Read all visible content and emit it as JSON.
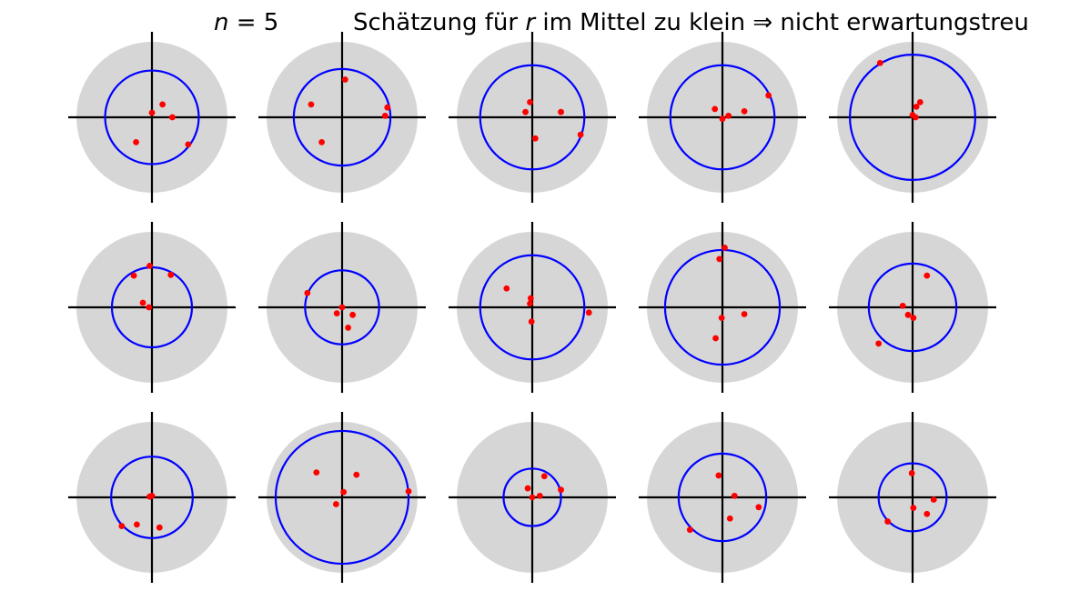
{
  "header": {
    "n_var": "n",
    "n_eq": " = 5",
    "caption_pre": "Schätzung für ",
    "caption_var": "r",
    "caption_post": " im Mittel zu klein ⇒ nicht erwartungstreu"
  },
  "colors": {
    "disk": "#d6d6d6",
    "estimate_circle": "#0000ff",
    "point": "#ff0000",
    "axis": "#000000"
  },
  "panels": [
    {
      "r": 0.62,
      "pts": [
        [
          0.0,
          0.06
        ],
        [
          0.14,
          0.17
        ],
        [
          0.27,
          0.0
        ],
        [
          -0.21,
          -0.33
        ],
        [
          0.48,
          -0.36
        ]
      ]
    },
    {
      "r": 0.64,
      "pts": [
        [
          0.04,
          0.5
        ],
        [
          -0.41,
          0.17
        ],
        [
          0.6,
          0.13
        ],
        [
          0.57,
          0.02
        ],
        [
          -0.27,
          -0.33
        ]
      ]
    },
    {
      "r": 0.69,
      "pts": [
        [
          -0.03,
          0.2
        ],
        [
          -0.09,
          0.07
        ],
        [
          0.38,
          0.07
        ],
        [
          0.64,
          -0.23
        ],
        [
          0.04,
          -0.28
        ]
      ]
    },
    {
      "r": 0.69,
      "pts": [
        [
          -0.1,
          0.11
        ],
        [
          0.08,
          0.02
        ],
        [
          0.29,
          0.08
        ],
        [
          0.61,
          0.29
        ],
        [
          0.0,
          -0.02
        ]
      ]
    },
    {
      "r": 0.83,
      "pts": [
        [
          -0.43,
          0.72
        ],
        [
          0.1,
          0.2
        ],
        [
          0.05,
          0.14
        ],
        [
          0.0,
          0.03
        ],
        [
          0.04,
          0.0
        ]
      ]
    },
    {
      "r": 0.53,
      "pts": [
        [
          -0.03,
          0.55
        ],
        [
          -0.24,
          0.42
        ],
        [
          0.25,
          0.43
        ],
        [
          -0.12,
          0.06
        ],
        [
          -0.04,
          0.0
        ]
      ]
    },
    {
      "r": 0.49,
      "pts": [
        [
          -0.46,
          0.19
        ],
        [
          0.0,
          0.0
        ],
        [
          -0.07,
          -0.08
        ],
        [
          0.14,
          -0.1
        ],
        [
          0.08,
          -0.27
        ]
      ]
    },
    {
      "r": 0.69,
      "pts": [
        [
          -0.34,
          0.25
        ],
        [
          -0.02,
          0.12
        ],
        [
          -0.03,
          0.05
        ],
        [
          0.75,
          -0.07
        ],
        [
          -0.01,
          -0.19
        ]
      ]
    },
    {
      "r": 0.76,
      "pts": [
        [
          0.03,
          0.79
        ],
        [
          -0.04,
          0.64
        ],
        [
          0.29,
          -0.09
        ],
        [
          -0.01,
          -0.14
        ],
        [
          -0.09,
          -0.41
        ]
      ]
    },
    {
      "r": 0.58,
      "pts": [
        [
          0.19,
          0.42
        ],
        [
          -0.13,
          0.02
        ],
        [
          -0.06,
          -0.1
        ],
        [
          0.01,
          -0.14
        ],
        [
          -0.45,
          -0.48
        ]
      ]
    },
    {
      "r": 0.54,
      "pts": [
        [
          0.0,
          0.02
        ],
        [
          -0.03,
          0.01
        ],
        [
          -0.4,
          -0.38
        ],
        [
          -0.2,
          -0.36
        ],
        [
          0.1,
          -0.4
        ]
      ]
    },
    {
      "r": 0.88,
      "pts": [
        [
          -0.34,
          0.33
        ],
        [
          0.19,
          0.3
        ],
        [
          0.02,
          0.07
        ],
        [
          -0.08,
          -0.09
        ],
        [
          0.88,
          0.08
        ]
      ]
    },
    {
      "r": 0.38,
      "pts": [
        [
          0.16,
          0.28
        ],
        [
          -0.06,
          0.12
        ],
        [
          0.38,
          0.1
        ],
        [
          0.1,
          0.02
        ],
        [
          0.0,
          0.0
        ]
      ]
    },
    {
      "r": 0.58,
      "pts": [
        [
          -0.05,
          0.29
        ],
        [
          0.16,
          0.02
        ],
        [
          0.48,
          -0.13
        ],
        [
          0.1,
          -0.28
        ],
        [
          -0.43,
          -0.43
        ]
      ]
    },
    {
      "r": 0.45,
      "pts": [
        [
          -0.01,
          0.32
        ],
        [
          0.28,
          -0.03
        ],
        [
          0.01,
          -0.14
        ],
        [
          0.19,
          -0.22
        ],
        [
          -0.33,
          -0.32
        ]
      ]
    }
  ]
}
